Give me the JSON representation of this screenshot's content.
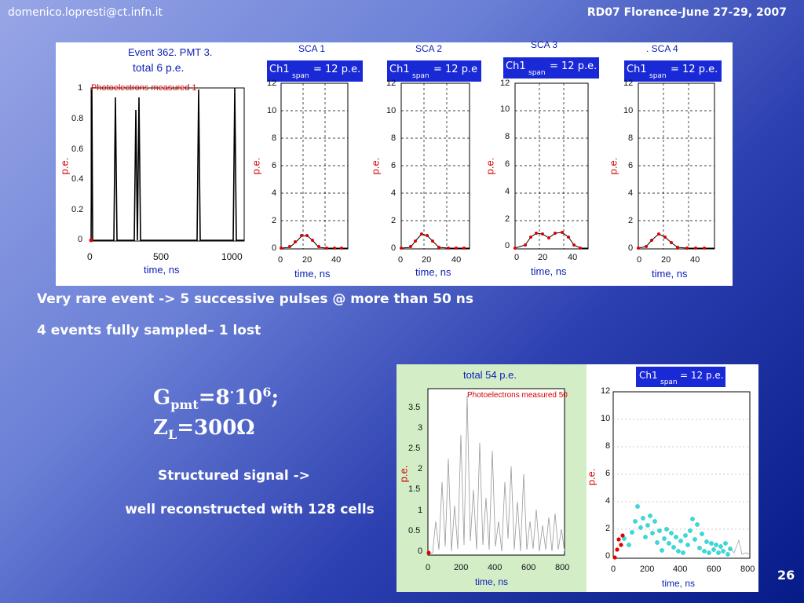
{
  "header": {
    "email": "domenico.lopresti@ct.infn.it",
    "conference": "RD07 Florence-June 27-29, 2007"
  },
  "top_figure": {
    "main_title1": "Event 362. PMT 3.",
    "main_title2": "total 6 p.e.",
    "main_legend": "Photoelectrons measured 1",
    "main_yticks": [
      "1",
      "0.8",
      "0.6",
      "0.4",
      "0.2",
      "0"
    ],
    "main_xticks": [
      "0",
      "500",
      "1000"
    ],
    "ylabel": "p.e.",
    "xlabel": "time, ns",
    "channels": [
      {
        "title": "SCA 1",
        "badge_main": "Ch1",
        "badge_sub": "span",
        "badge_tail": "= 12 p.e."
      },
      {
        "title": "SCA 2",
        "badge_main": "Ch1",
        "badge_sub": "span",
        "badge_tail": "= 12 p.e"
      },
      {
        "title": "SCA 3",
        "badge_main": "Ch1",
        "badge_sub": "span",
        "badge_tail": "= 12 p.e."
      },
      {
        "title": ". SCA 4",
        "badge_main": "Ch1",
        "badge_sub": "span",
        "badge_tail": "= 12 p.e."
      }
    ],
    "sca_yticks": [
      "12",
      "10",
      "8",
      "6",
      "4",
      "2",
      "0"
    ],
    "sca_xticks": [
      "0",
      "20",
      "40"
    ]
  },
  "text": {
    "line1": "Very rare event -> 5 successive pulses @ more than 50 ns",
    "line2": "4 events fully sampled– 1 lost",
    "formula_g": "G",
    "formula_g_sub": "pmt",
    "formula_g_rest": "=8",
    "formula_dot": "·",
    "formula_ten": "10",
    "formula_exp": "6",
    "formula_semicolon": ";",
    "formula_z": "Z",
    "formula_z_sub": "L",
    "formula_z_rest": "=300Ω",
    "structured1": "Structured signal ->",
    "structured2": "well reconstructed with 128 cells"
  },
  "bottom_figure": {
    "title": "total 54 p.e.",
    "legend": "Photoelectrons measured 50",
    "yticks": [
      "3.5",
      "3",
      "2.5",
      "2",
      "1.5",
      "1",
      "0.5",
      "0"
    ],
    "xticks": [
      "0",
      "200",
      "400",
      "600",
      "800"
    ],
    "ylabel": "p.e.",
    "xlabel": "time, ns",
    "badge_main": "Ch1",
    "badge_sub": "span",
    "badge_tail": "= 12 p.e.",
    "right_yticks": [
      "12",
      "10",
      "8",
      "6",
      "4",
      "2",
      "0"
    ],
    "right_xticks": [
      "0",
      "200",
      "400",
      "600",
      "800"
    ]
  },
  "page_number": "26"
}
